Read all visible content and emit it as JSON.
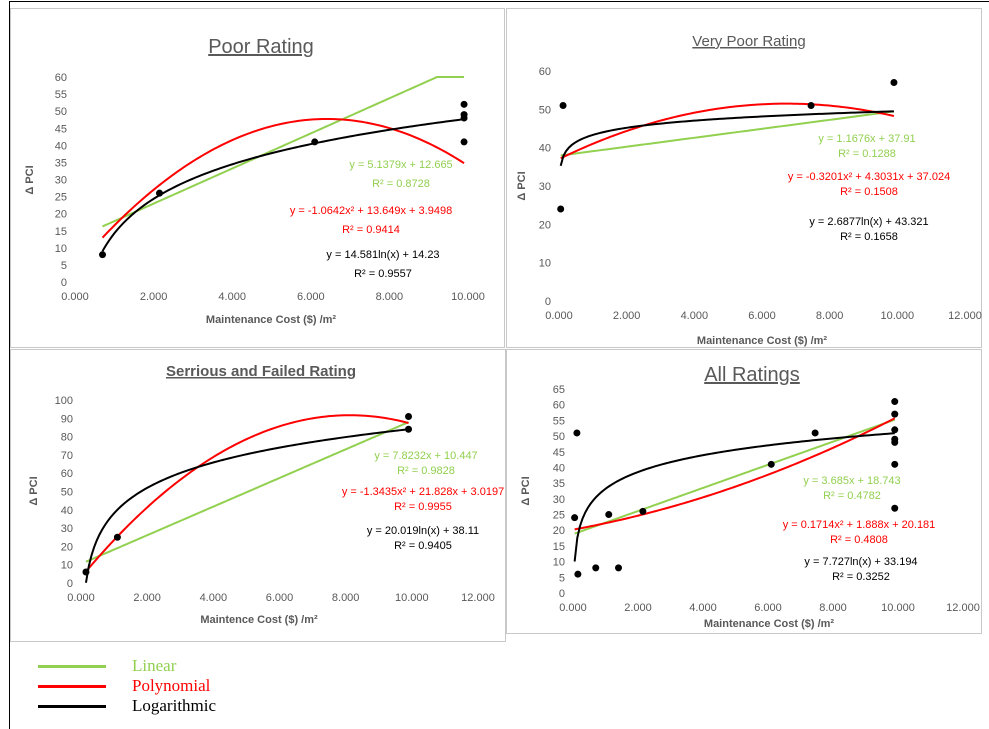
{
  "colors": {
    "linear": "#92d050",
    "polynomial": "#ff0000",
    "logarithmic": "#000000",
    "points": "#000000"
  },
  "legend": [
    {
      "label": "Linear",
      "color": "#92d050"
    },
    {
      "label": "Polynomial",
      "color": "#ff0000"
    },
    {
      "label": "Logarithmic",
      "color": "#000000"
    }
  ],
  "chart_data": [
    {
      "type": "scatter",
      "title": "Poor Rating",
      "xlabel": "Maintenance Cost ($) /m²",
      "ylabel": "Δ PCI",
      "xlim": [
        0,
        10
      ],
      "ylim": [
        0,
        60
      ],
      "xticks": [
        "0.000",
        "2.000",
        "4.000",
        "6.000",
        "8.000",
        "10.000"
      ],
      "yticks": [
        "0",
        "5",
        "10",
        "15",
        "20",
        "25",
        "30",
        "35",
        "40",
        "45",
        "50",
        "55",
        "60"
      ],
      "points": [
        [
          0.7,
          8
        ],
        [
          2.15,
          26
        ],
        [
          6.1,
          41
        ],
        [
          9.9,
          52
        ],
        [
          9.9,
          49
        ],
        [
          9.9,
          48
        ],
        [
          9.9,
          41
        ]
      ],
      "linear": {
        "slope": 5.1379,
        "intercept": 12.665,
        "equation": "y = 5.1379x + 12.665",
        "r2": "R² = 0.8728"
      },
      "polynomial": {
        "a": -1.0642,
        "b": 13.649,
        "c": 3.9498,
        "equation": "y = -1.0642x² + 13.649x + 3.9498",
        "r2": "R² = 0.9414"
      },
      "logarithmic": {
        "a": 14.581,
        "b": 14.23,
        "equation": "y = 14.581ln(x) + 14.23",
        "r2": "R² = 0.9557"
      }
    },
    {
      "type": "scatter",
      "title": "Very Poor Rating",
      "xlabel": "Maintenance Cost ($) /m²",
      "ylabel": "Δ PCI",
      "xlim": [
        0,
        12
      ],
      "ylim": [
        0,
        60
      ],
      "xticks": [
        "0.000",
        "2.000",
        "4.000",
        "6.000",
        "8.000",
        "10.000",
        "12.000"
      ],
      "yticks": [
        "0",
        "10",
        "20",
        "30",
        "40",
        "50",
        "60"
      ],
      "points": [
        [
          0.05,
          24
        ],
        [
          0.12,
          51
        ],
        [
          7.45,
          51
        ],
        [
          9.9,
          57
        ]
      ],
      "linear": {
        "slope": 1.1676,
        "intercept": 37.91,
        "equation": "y = 1.1676x + 37.91",
        "r2": "R² = 0.1288"
      },
      "polynomial": {
        "a": -0.3201,
        "b": 4.3031,
        "c": 37.024,
        "equation": "y = -0.3201x² + 4.3031x + 37.024",
        "r2": "R² = 0.1508"
      },
      "logarithmic": {
        "a": 2.6877,
        "b": 43.321,
        "equation": "y = 2.6877ln(x) + 43.321",
        "r2": "R² = 0.1658"
      }
    },
    {
      "type": "scatter",
      "title": "Serrious and Failed Rating",
      "xlabel": "Maintence Cost ($) /m²",
      "ylabel": "Δ PCI",
      "xlim": [
        0,
        12
      ],
      "ylim": [
        0,
        100
      ],
      "xticks": [
        "0.000",
        "2.000",
        "4.000",
        "6.000",
        "8.000",
        "10.000",
        "12.000"
      ],
      "yticks": [
        "0",
        "10",
        "20",
        "30",
        "40",
        "50",
        "60",
        "70",
        "80",
        "90",
        "100"
      ],
      "points": [
        [
          0.15,
          6
        ],
        [
          1.1,
          25
        ],
        [
          9.9,
          91
        ],
        [
          9.9,
          84
        ]
      ],
      "linear": {
        "slope": 7.8232,
        "intercept": 10.447,
        "equation": "y = 7.8232x + 10.447",
        "r2": "R² = 0.9828"
      },
      "polynomial": {
        "a": -1.3435,
        "b": 21.828,
        "c": 3.0197,
        "equation": "y = -1.3435x² + 21.828x + 3.0197",
        "r2": "R² = 0.9955"
      },
      "logarithmic": {
        "a": 20.019,
        "b": 38.11,
        "equation": "y = 20.019ln(x) + 38.11",
        "r2": "R² = 0.9405"
      }
    },
    {
      "type": "scatter",
      "title": "All Ratings",
      "xlabel": "Maintenance Cost ($) /m²",
      "ylabel": "Δ PCI",
      "xlim": [
        0,
        12
      ],
      "ylim": [
        0,
        65
      ],
      "xticks": [
        "0.000",
        "2.000",
        "4.000",
        "6.000",
        "8.000",
        "10.000",
        "12.000"
      ],
      "yticks": [
        "0",
        "5",
        "10",
        "15",
        "20",
        "25",
        "30",
        "35",
        "40",
        "45",
        "50",
        "55",
        "60",
        "65"
      ],
      "points": [
        [
          0.05,
          24
        ],
        [
          0.12,
          51
        ],
        [
          0.15,
          6
        ],
        [
          0.7,
          8
        ],
        [
          1.1,
          25
        ],
        [
          1.4,
          8
        ],
        [
          2.15,
          26
        ],
        [
          6.1,
          41
        ],
        [
          7.45,
          51
        ],
        [
          9.9,
          61
        ],
        [
          9.9,
          57
        ],
        [
          9.9,
          52
        ],
        [
          9.9,
          49
        ],
        [
          9.9,
          48
        ],
        [
          9.9,
          41
        ],
        [
          9.9,
          27
        ]
      ],
      "linear": {
        "slope": 3.685,
        "intercept": 18.743,
        "equation": "y = 3.685x + 18.743",
        "r2": "R² = 0.4782"
      },
      "polynomial": {
        "a": 0.1714,
        "b": 1.888,
        "c": 20.181,
        "equation": "y = 0.1714x² + 1.888x + 20.181",
        "r2": "R² = 0.4808"
      },
      "logarithmic": {
        "a": 7.727,
        "b": 33.194,
        "equation": "y = 7.727ln(x) + 33.194",
        "r2": "R² = 0.3252"
      }
    }
  ]
}
